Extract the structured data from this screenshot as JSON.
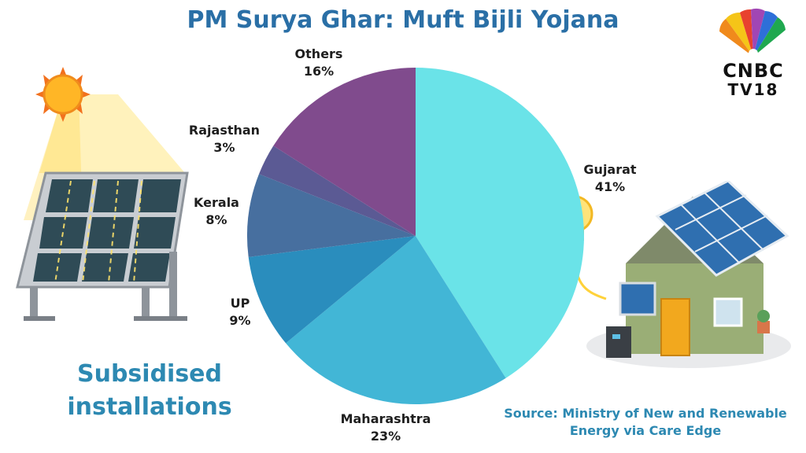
{
  "header": {
    "title": "PM Surya Ghar: Muft Bijli Yojana"
  },
  "logo": {
    "line1": "CNBC",
    "line2": "TV18",
    "icon": "peacock-icon"
  },
  "headline": {
    "line1": "Subsidised",
    "line2": "installations"
  },
  "footer": {
    "source_line1": "Source: Ministry of New and Renewable",
    "source_line2": "Energy via Care Edge"
  },
  "illustrations": {
    "left": "solar-panel-with-sun-icon",
    "right": "house-with-rooftop-solar-icon"
  },
  "chart_data": {
    "type": "pie",
    "title": "PM Surya Ghar: Muft Bijli Yojana",
    "start_angle_deg": 0,
    "direction": "clockwise",
    "slices": [
      {
        "label": "Gujarat",
        "value": 41,
        "value_label": "41%",
        "color": "#6ae3e8"
      },
      {
        "label": "Maharashtra",
        "value": 23,
        "value_label": "23%",
        "color": "#42b6d6"
      },
      {
        "label": "UP",
        "value": 9,
        "value_label": "9%",
        "color": "#2a8dbd"
      },
      {
        "label": "Kerala",
        "value": 8,
        "value_label": "8%",
        "color": "#476f9f"
      },
      {
        "label": "Rajasthan",
        "value": 3,
        "value_label": "3%",
        "color": "#5b5a94"
      },
      {
        "label": "Others",
        "value": 16,
        "value_label": "16%",
        "color": "#804b8d"
      }
    ]
  }
}
